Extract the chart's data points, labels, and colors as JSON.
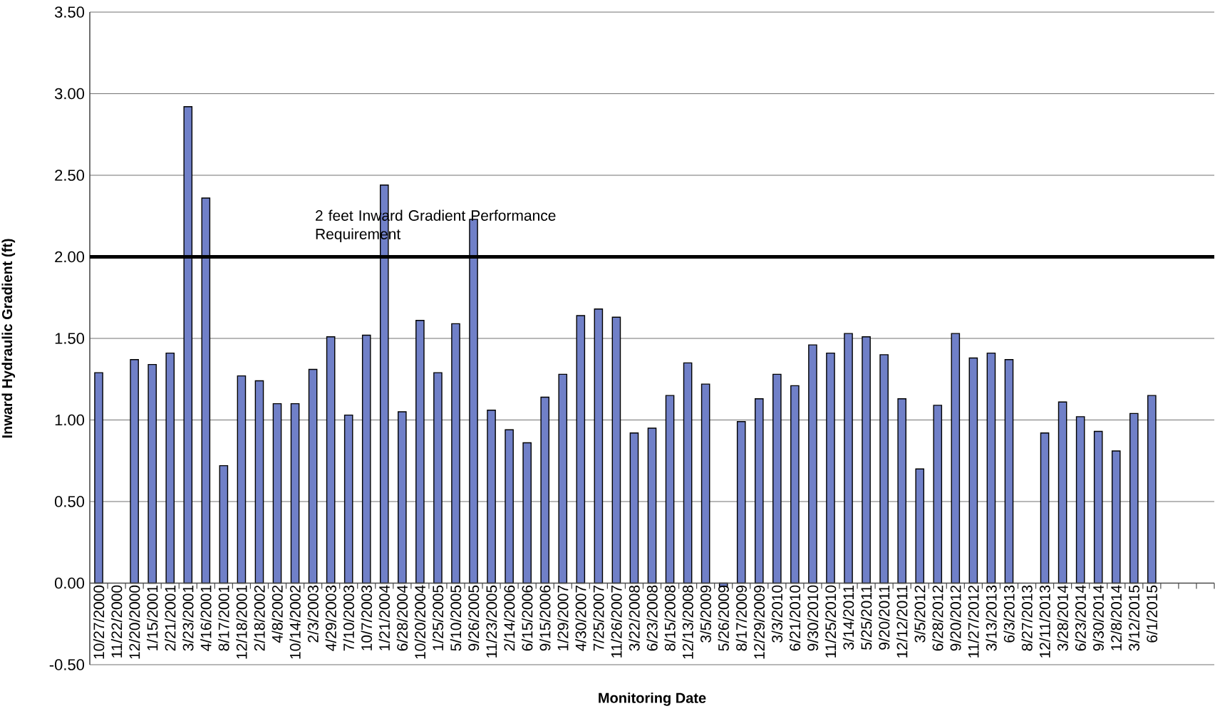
{
  "chart_data": {
    "type": "bar",
    "xlabel": "Monitoring Date",
    "ylabel": "Inward Hydraulic Gradient (ft)",
    "categories": [
      "10/27/2000",
      "11/22/2000",
      "12/20/2000",
      "1/15/2001",
      "2/21/2001",
      "3/23/2001",
      "4/16/2001",
      "8/17/2001",
      "12/18/2001",
      "2/18/2002",
      "4/8/2002",
      "10/14/2002",
      "2/3/2003",
      "4/29/2003",
      "7/10/2003",
      "10/7/2003",
      "1/21/2004",
      "6/28/2004",
      "10/20/2004",
      "1/25/2005",
      "5/10/2005",
      "9/26/2005",
      "11/23/2005",
      "2/14/2006",
      "6/15/2006",
      "9/15/2006",
      "1/29/2007",
      "4/30/2007",
      "7/25/2007",
      "11/26/2007",
      "3/22/2008",
      "6/23/2008",
      "8/15/2008",
      "12/13/2008",
      "3/5/2009",
      "5/26/2009",
      "8/17/2009",
      "12/29/2009",
      "3/3/2010",
      "6/21/2010",
      "9/30/2010",
      "11/25/2010",
      "3/14/2011",
      "5/25/2011",
      "9/20/2011",
      "12/12/2011",
      "3/5/2012",
      "6/28/2012",
      "9/20/2012",
      "11/27/2012",
      "3/13/2013",
      "6/3/2013",
      "8/27/2013",
      "12/11/2013",
      "3/28/2014",
      "6/23/2014",
      "9/30/2014",
      "12/8/2014",
      "3/12/2015",
      "6/1/2015",
      null,
      null,
      null
    ],
    "values": [
      1.29,
      null,
      1.37,
      1.34,
      1.41,
      2.92,
      2.36,
      0.72,
      1.27,
      1.24,
      1.1,
      1.1,
      1.31,
      1.51,
      1.03,
      1.52,
      2.44,
      1.05,
      1.61,
      1.29,
      1.59,
      2.23,
      1.06,
      0.94,
      0.86,
      1.14,
      1.28,
      1.64,
      1.68,
      1.63,
      0.92,
      0.95,
      1.15,
      1.35,
      1.22,
      -0.02,
      0.99,
      1.13,
      1.28,
      1.21,
      1.46,
      1.41,
      1.53,
      1.51,
      1.4,
      1.13,
      0.7,
      1.09,
      1.53,
      1.38,
      1.41,
      1.37,
      null,
      0.92,
      1.11,
      1.02,
      0.93,
      0.81,
      1.04,
      1.15,
      null,
      null,
      null
    ],
    "color": "#7080c8",
    "ylim": [
      -0.5,
      3.5
    ],
    "yticks": [
      {
        "value": -0.5,
        "label": "-0.50"
      },
      {
        "value": 0,
        "label": "0.00"
      },
      {
        "value": 0.5,
        "label": "0.50"
      },
      {
        "value": 1,
        "label": "1.00"
      },
      {
        "value": 1.5,
        "label": "1.50"
      },
      {
        "value": 2,
        "label": "2.00"
      },
      {
        "value": 2.5,
        "label": "2.50"
      },
      {
        "value": 3,
        "label": "3.00"
      },
      {
        "value": 3.5,
        "label": "3.50"
      }
    ],
    "grid": "y",
    "ref_lines": [
      {
        "axis": "y",
        "value": 2,
        "label": "2 feet Inward Gradient Performance Requirement",
        "color": "#000000"
      }
    ]
  }
}
